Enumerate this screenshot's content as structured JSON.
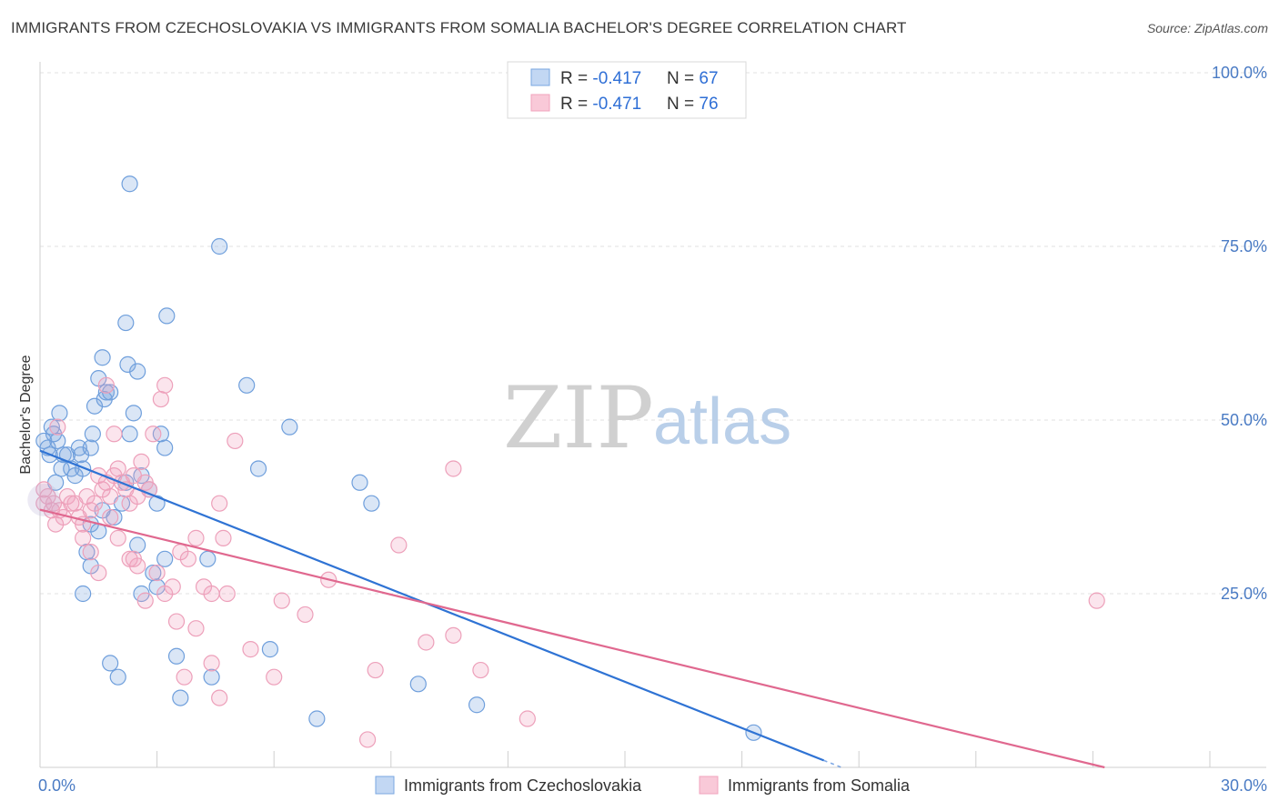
{
  "title": "IMMIGRANTS FROM CZECHOSLOVAKIA VS IMMIGRANTS FROM SOMALIA BACHELOR'S DEGREE CORRELATION CHART",
  "source": "Source: ZipAtlas.com",
  "watermark": {
    "zip": "ZIP",
    "atlas": "atlas"
  },
  "colors": {
    "blue": "#7aa7e0",
    "blue_line": "#2f73d4",
    "pink": "#f1a3bd",
    "pink_line": "#e0688f",
    "axis_text": "#4a7bc4"
  },
  "legend": {
    "items": [
      {
        "r_label": "R = ",
        "r_value": "-0.417",
        "n_label": "N = ",
        "n_value": "67"
      },
      {
        "r_label": "R = ",
        "r_value": "-0.471",
        "n_label": "N = ",
        "n_value": "76"
      }
    ]
  },
  "chart_data": {
    "type": "scatter",
    "title": "IMMIGRANTS FROM CZECHOSLOVAKIA VS IMMIGRANTS FROM SOMALIA BACHELOR'S DEGREE CORRELATION CHART",
    "xlabel": "",
    "ylabel": "Bachelor's Degree",
    "xlim": [
      0,
      30
    ],
    "ylim": [
      0,
      100
    ],
    "x_tick_labels": [
      "0.0%",
      "30.0%"
    ],
    "y_ticks": [
      25,
      50,
      75,
      100
    ],
    "y_tick_labels": [
      "25.0%",
      "50.0%",
      "75.0%",
      "100.0%"
    ],
    "grid": true,
    "legend_position": "top-center",
    "series": [
      {
        "name": "Immigrants from Czechoslovakia",
        "color": "#7aa7e0",
        "trend": {
          "x": [
            0,
            20.1
          ],
          "y": [
            45.6,
            1.0
          ]
        },
        "points": [
          [
            0.1,
            47
          ],
          [
            0.2,
            46
          ],
          [
            0.25,
            45
          ],
          [
            0.3,
            49
          ],
          [
            0.35,
            48
          ],
          [
            0.4,
            41
          ],
          [
            0.45,
            47
          ],
          [
            0.5,
            51
          ],
          [
            0.55,
            43
          ],
          [
            0.6,
            45
          ],
          [
            0.7,
            45
          ],
          [
            0.8,
            43
          ],
          [
            0.9,
            42
          ],
          [
            1.0,
            46
          ],
          [
            1.05,
            45
          ],
          [
            1.1,
            43
          ],
          [
            1.3,
            46
          ],
          [
            1.35,
            48
          ],
          [
            1.4,
            52
          ],
          [
            1.5,
            56
          ],
          [
            1.6,
            59
          ],
          [
            1.65,
            53
          ],
          [
            1.7,
            54
          ],
          [
            1.8,
            54
          ],
          [
            2.2,
            64
          ],
          [
            2.25,
            58
          ],
          [
            2.3,
            48
          ],
          [
            2.4,
            51
          ],
          [
            2.5,
            57
          ],
          [
            2.6,
            42
          ],
          [
            2.8,
            40
          ],
          [
            3.0,
            38
          ],
          [
            3.1,
            48
          ],
          [
            3.2,
            46
          ],
          [
            3.25,
            65
          ],
          [
            2.3,
            84
          ],
          [
            4.6,
            75
          ],
          [
            5.3,
            55
          ],
          [
            5.6,
            43
          ],
          [
            6.4,
            49
          ],
          [
            8.2,
            41
          ],
          [
            8.5,
            38
          ],
          [
            1.3,
            35
          ],
          [
            1.5,
            34
          ],
          [
            1.6,
            37
          ],
          [
            1.2,
            31
          ],
          [
            1.3,
            29
          ],
          [
            1.1,
            25
          ],
          [
            1.9,
            36
          ],
          [
            2.1,
            38
          ],
          [
            2.2,
            41
          ],
          [
            2.5,
            32
          ],
          [
            2.6,
            25
          ],
          [
            3.0,
            26
          ],
          [
            2.9,
            28
          ],
          [
            3.2,
            30
          ],
          [
            4.3,
            30
          ],
          [
            3.5,
            16
          ],
          [
            3.6,
            10
          ],
          [
            4.4,
            13
          ],
          [
            5.9,
            17
          ],
          [
            7.1,
            7
          ],
          [
            9.7,
            12
          ],
          [
            11.2,
            9
          ],
          [
            18.3,
            5
          ],
          [
            1.8,
            15
          ],
          [
            2.0,
            13
          ]
        ]
      },
      {
        "name": "Immigrants from Somalia",
        "color": "#f1a3bd",
        "trend": {
          "x": [
            0,
            27.3
          ],
          "y": [
            37.1,
            0.0
          ]
        },
        "points": [
          [
            0.1,
            38
          ],
          [
            0.2,
            39
          ],
          [
            0.3,
            37
          ],
          [
            0.35,
            38
          ],
          [
            0.5,
            37
          ],
          [
            0.6,
            36
          ],
          [
            0.7,
            39
          ],
          [
            0.8,
            38
          ],
          [
            0.9,
            38
          ],
          [
            1.0,
            36
          ],
          [
            1.1,
            35
          ],
          [
            1.2,
            39
          ],
          [
            1.3,
            37
          ],
          [
            1.4,
            38
          ],
          [
            1.5,
            42
          ],
          [
            1.6,
            40
          ],
          [
            1.7,
            41
          ],
          [
            1.8,
            39
          ],
          [
            1.9,
            42
          ],
          [
            2.0,
            43
          ],
          [
            2.1,
            41
          ],
          [
            2.2,
            40
          ],
          [
            2.3,
            38
          ],
          [
            2.4,
            42
          ],
          [
            2.5,
            39
          ],
          [
            2.6,
            44
          ],
          [
            2.7,
            41
          ],
          [
            2.8,
            40
          ],
          [
            0.45,
            49
          ],
          [
            1.3,
            31
          ],
          [
            1.5,
            28
          ],
          [
            1.1,
            33
          ],
          [
            1.8,
            36
          ],
          [
            2.0,
            33
          ],
          [
            2.3,
            30
          ],
          [
            2.5,
            29
          ],
          [
            2.7,
            24
          ],
          [
            3.0,
            28
          ],
          [
            3.2,
            25
          ],
          [
            3.4,
            26
          ],
          [
            3.6,
            31
          ],
          [
            3.8,
            30
          ],
          [
            4.0,
            33
          ],
          [
            4.2,
            26
          ],
          [
            4.4,
            25
          ],
          [
            4.6,
            38
          ],
          [
            4.7,
            33
          ],
          [
            4.8,
            25
          ],
          [
            5.0,
            47
          ],
          [
            3.2,
            55
          ],
          [
            3.1,
            53
          ],
          [
            2.9,
            48
          ],
          [
            1.9,
            48
          ],
          [
            1.7,
            55
          ],
          [
            2.4,
            30
          ],
          [
            3.5,
            21
          ],
          [
            4.0,
            20
          ],
          [
            4.4,
            15
          ],
          [
            4.6,
            10
          ],
          [
            3.7,
            13
          ],
          [
            5.4,
            17
          ],
          [
            6.0,
            13
          ],
          [
            6.2,
            24
          ],
          [
            6.8,
            22
          ],
          [
            7.4,
            27
          ],
          [
            8.4,
            4
          ],
          [
            8.6,
            14
          ],
          [
            9.2,
            32
          ],
          [
            9.9,
            18
          ],
          [
            10.6,
            43
          ],
          [
            10.6,
            19
          ],
          [
            11.3,
            14
          ],
          [
            12.5,
            7
          ],
          [
            27.1,
            24
          ],
          [
            0.1,
            40
          ],
          [
            0.4,
            35
          ]
        ]
      }
    ]
  },
  "bottom_legend": [
    "Immigrants from Czechoslovakia",
    "Immigrants from Somalia"
  ]
}
